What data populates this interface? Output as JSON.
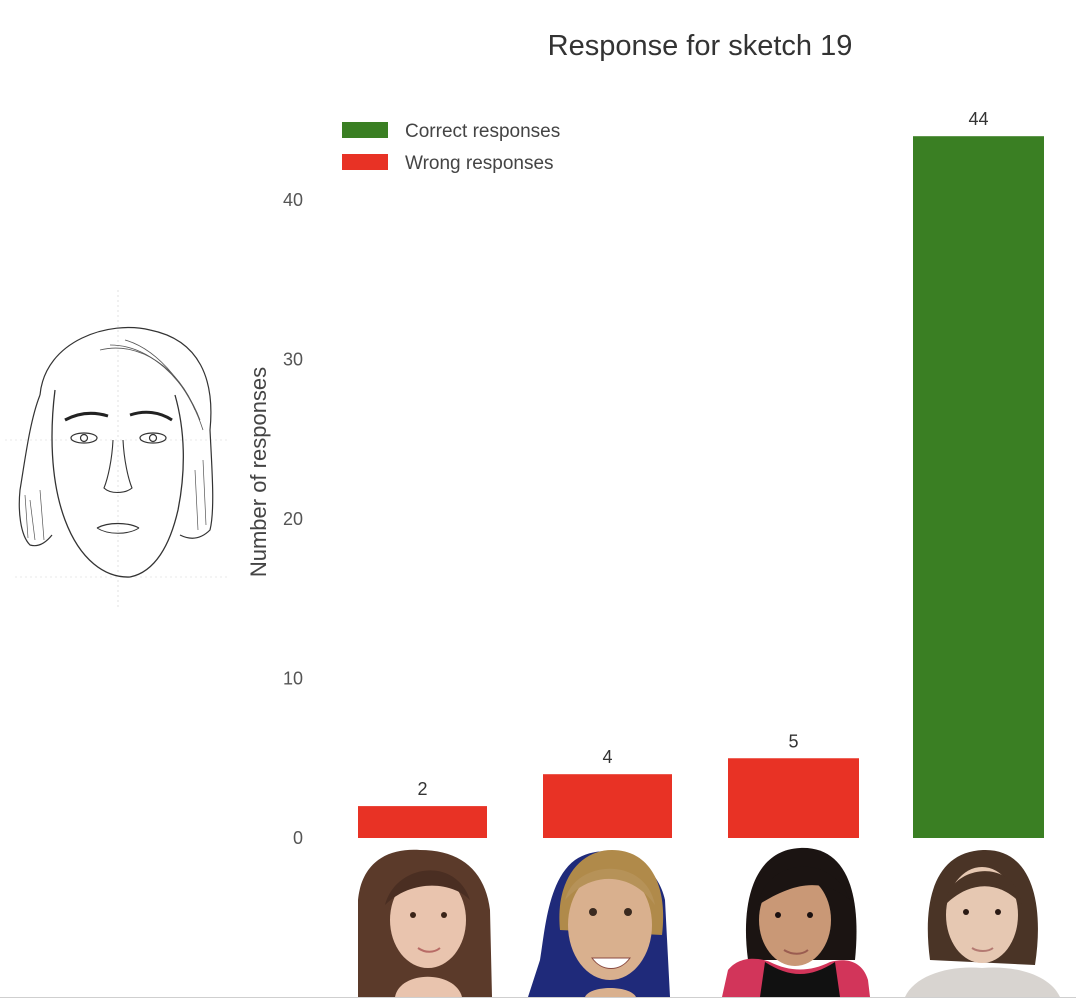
{
  "chart_data": {
    "type": "bar",
    "title": "Response for sketch 19",
    "xlabel": "",
    "ylabel": "Number of responses",
    "ylim": [
      0,
      44
    ],
    "yticks": [
      0,
      10,
      20,
      30,
      40
    ],
    "grid": false,
    "legend_position": "top-left",
    "legend": [
      {
        "label": "Correct responses",
        "color": "#3a7f23"
      },
      {
        "label": "Wrong responses",
        "color": "#e83225"
      }
    ],
    "categories": [
      "face-1",
      "face-2",
      "face-3",
      "face-4"
    ],
    "values": [
      2,
      4,
      5,
      44
    ],
    "value_labels": [
      "2",
      "4",
      "5",
      "44"
    ],
    "bar_status": [
      "wrong",
      "wrong",
      "wrong",
      "correct"
    ]
  },
  "images": {
    "sketch": "pencil sketch of a woman's face",
    "candidate_photos": [
      "woman with long brown hair",
      "woman with blonde hair smiling",
      "woman with short black hair and scarf",
      "woman with bob haircut"
    ]
  }
}
